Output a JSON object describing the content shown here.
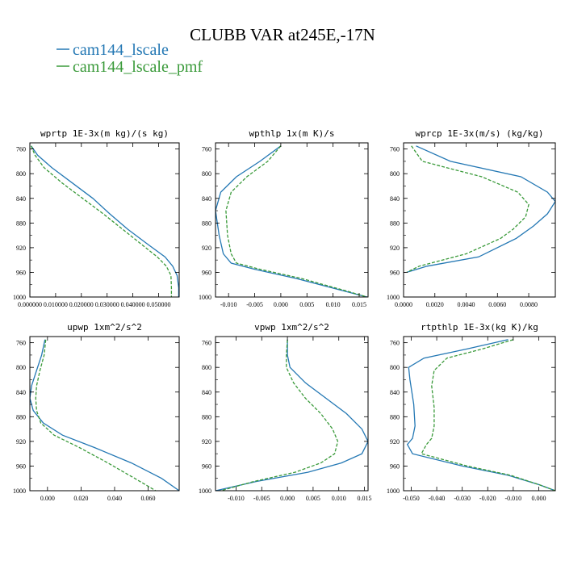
{
  "title": "CLUBB VAR at245E,-17N",
  "legend": [
    {
      "name": "cam144_lscale",
      "color": "#2478b4"
    },
    {
      "name": "cam144_lscale_pmf",
      "color": "#3a9a3a"
    }
  ],
  "chart_data": [
    {
      "type": "line",
      "title": "wprtp  1E-3x(m kg)/(s kg)",
      "xlim": [
        0.0,
        0.058
      ],
      "ylim": [
        1000,
        750
      ],
      "xticks": [
        0.0,
        0.01,
        0.02,
        0.03,
        0.04,
        0.05
      ],
      "xtick_labels": [
        "0.000000",
        "0.010000",
        "0.020000",
        "0.030000",
        "0.040000",
        "0.050000"
      ],
      "yticks": [
        760,
        800,
        840,
        880,
        920,
        960,
        1000
      ],
      "ytick_labels": [
        "760",
        "800",
        "840",
        "880",
        "920",
        "960",
        "1000"
      ],
      "series": [
        {
          "name": "cam144_lscale",
          "color": "#2478b4",
          "dash": "",
          "x": [
            0.0005,
            0.003,
            0.0085,
            0.0165,
            0.0245,
            0.031,
            0.038,
            0.046,
            0.0525,
            0.0555,
            0.0572,
            0.0578,
            0.0578
          ],
          "y": [
            755,
            770,
            790,
            815,
            840,
            865,
            890,
            915,
            935,
            950,
            965,
            985,
            1000
          ]
        },
        {
          "name": "cam144_lscale_pmf",
          "color": "#3a9a3a",
          "dash": "4,2",
          "x": [
            0.0005,
            0.002,
            0.0055,
            0.0125,
            0.0205,
            0.0285,
            0.036,
            0.0435,
            0.0495,
            0.053,
            0.0548,
            0.055,
            0.055
          ],
          "y": [
            755,
            770,
            790,
            815,
            840,
            865,
            890,
            915,
            935,
            950,
            965,
            985,
            1000
          ]
        }
      ]
    },
    {
      "type": "line",
      "title": "wpthlp  1x(m K)/s",
      "xlim": [
        -0.0125,
        0.0167
      ],
      "ylim": [
        1000,
        750
      ],
      "xticks": [
        -0.01,
        -0.005,
        0.0,
        0.005,
        0.01,
        0.015
      ],
      "xtick_labels": [
        "-0.010",
        "-0.005",
        "0.000",
        "0.005",
        "0.010",
        "0.015"
      ],
      "yticks": [
        760,
        800,
        840,
        880,
        920,
        960,
        1000
      ],
      "ytick_labels": [
        "760",
        "800",
        "840",
        "880",
        "920",
        "960",
        "1000"
      ],
      "series": [
        {
          "name": "cam144_lscale",
          "color": "#2478b4",
          "dash": "",
          "x": [
            0.0,
            -0.004,
            -0.0085,
            -0.0115,
            -0.0125,
            -0.0118,
            -0.011,
            -0.0095,
            -0.005,
            0.003,
            0.012,
            0.0165
          ],
          "y": [
            755,
            780,
            805,
            830,
            860,
            900,
            930,
            945,
            955,
            970,
            990,
            1000
          ]
        },
        {
          "name": "cam144_lscale_pmf",
          "color": "#3a9a3a",
          "dash": "4,2",
          "x": [
            0.0,
            -0.0025,
            -0.0065,
            -0.0095,
            -0.0105,
            -0.0102,
            -0.0095,
            -0.0085,
            -0.004,
            0.004,
            0.0125,
            0.0165
          ],
          "y": [
            755,
            780,
            805,
            830,
            860,
            900,
            930,
            945,
            955,
            970,
            990,
            1000
          ]
        }
      ]
    },
    {
      "type": "line",
      "title": "wprcp  1E-3x(m/s) (kg/kg)",
      "xlim": [
        0.0,
        0.0097
      ],
      "ylim": [
        1000,
        750
      ],
      "xticks": [
        0.0,
        0.002,
        0.004,
        0.006,
        0.008
      ],
      "xtick_labels": [
        "0.0000",
        "0.0020",
        "0.0040",
        "0.0060",
        "0.0080"
      ],
      "yticks": [
        760,
        800,
        840,
        880,
        920,
        960,
        1000
      ],
      "ytick_labels": [
        "760",
        "800",
        "840",
        "880",
        "920",
        "960",
        "1000"
      ],
      "series": [
        {
          "name": "cam144_lscale",
          "color": "#2478b4",
          "dash": "",
          "x": [
            0.0008,
            0.003,
            0.0075,
            0.0092,
            0.0097,
            0.0092,
            0.0083,
            0.0072,
            0.0048,
            0.0015,
            0.0002
          ],
          "y": [
            755,
            780,
            805,
            830,
            845,
            865,
            885,
            905,
            935,
            950,
            960
          ]
        },
        {
          "name": "cam144_lscale_pmf",
          "color": "#3a9a3a",
          "dash": "4,2",
          "x": [
            0.0005,
            0.0012,
            0.005,
            0.0073,
            0.008,
            0.0078,
            0.007,
            0.0062,
            0.004,
            0.001,
            0.0002
          ],
          "y": [
            755,
            780,
            805,
            830,
            850,
            870,
            890,
            905,
            930,
            950,
            960
          ]
        }
      ]
    },
    {
      "type": "line",
      "title": "upwp  1xm^2/s^2",
      "xlim": [
        -0.0105,
        0.0785
      ],
      "ylim": [
        1000,
        750
      ],
      "xticks": [
        0.0,
        0.02,
        0.04,
        0.06
      ],
      "xtick_labels": [
        "0.000",
        "0.020",
        "0.040",
        "0.060"
      ],
      "yticks": [
        760,
        800,
        840,
        880,
        920,
        960,
        1000
      ],
      "ytick_labels": [
        "760",
        "800",
        "840",
        "880",
        "920",
        "960",
        "1000"
      ],
      "series": [
        {
          "name": "cam144_lscale",
          "color": "#2478b4",
          "dash": "",
          "x": [
            -0.0015,
            -0.0035,
            -0.0065,
            -0.0095,
            -0.0105,
            -0.0085,
            -0.0025,
            0.009,
            0.028,
            0.05,
            0.068,
            0.0785
          ],
          "y": [
            755,
            780,
            805,
            830,
            850,
            870,
            890,
            910,
            930,
            955,
            980,
            1000
          ]
        },
        {
          "name": "cam144_lscale_pmf",
          "color": "#3a9a3a",
          "dash": "4,2",
          "x": [
            -0.001,
            -0.002,
            -0.0045,
            -0.0065,
            -0.007,
            -0.0065,
            -0.004,
            0.004,
            0.019,
            0.036,
            0.052,
            0.0645
          ],
          "y": [
            755,
            780,
            805,
            830,
            850,
            870,
            890,
            910,
            930,
            955,
            980,
            1000
          ]
        }
      ]
    },
    {
      "type": "line",
      "title": "vpwp  1xm^2/s^2",
      "xlim": [
        -0.014,
        0.0157
      ],
      "ylim": [
        1000,
        750
      ],
      "xticks": [
        -0.01,
        -0.005,
        0.0,
        0.005,
        0.01,
        0.015
      ],
      "xtick_labels": [
        "-0.010",
        "-0.005",
        "0.000",
        "0.005",
        "0.010",
        "0.015"
      ],
      "yticks": [
        760,
        800,
        840,
        880,
        920,
        960,
        1000
      ],
      "ytick_labels": [
        "760",
        "800",
        "840",
        "880",
        "920",
        "960",
        "1000"
      ],
      "series": [
        {
          "name": "cam144_lscale",
          "color": "#2478b4",
          "dash": "",
          "x": [
            0.0,
            0.0,
            0.0005,
            0.0035,
            0.0075,
            0.0115,
            0.0145,
            0.0157,
            0.0145,
            0.0105,
            0.004,
            -0.006,
            -0.014
          ],
          "y": [
            755,
            780,
            800,
            825,
            850,
            875,
            900,
            920,
            940,
            955,
            970,
            985,
            1000
          ]
        },
        {
          "name": "cam144_lscale_pmf",
          "color": "#3a9a3a",
          "dash": "4,2",
          "x": [
            0.0,
            -0.0002,
            -0.0002,
            0.0012,
            0.0035,
            0.0065,
            0.0088,
            0.0098,
            0.0092,
            0.0065,
            0.0015,
            -0.0065,
            -0.013
          ],
          "y": [
            755,
            780,
            800,
            825,
            850,
            875,
            900,
            920,
            940,
            955,
            970,
            985,
            1000
          ]
        }
      ]
    },
    {
      "type": "line",
      "title": "rtpthlp  1E-3x(kg K)/kg",
      "xlim": [
        -0.053,
        0.0065
      ],
      "ylim": [
        1000,
        750
      ],
      "xticks": [
        -0.05,
        -0.04,
        -0.03,
        -0.02,
        -0.01,
        0.0
      ],
      "xtick_labels": [
        "-0.050",
        "-0.040",
        "-0.030",
        "-0.020",
        "-0.010",
        "0.000"
      ],
      "yticks": [
        760,
        800,
        840,
        880,
        920,
        960,
        1000
      ],
      "ytick_labels": [
        "760",
        "800",
        "840",
        "880",
        "920",
        "960",
        "1000"
      ],
      "series": [
        {
          "name": "cam144_lscale",
          "color": "#2478b4",
          "dash": "",
          "x": [
            -0.012,
            -0.028,
            -0.045,
            -0.051,
            -0.0505,
            -0.049,
            -0.0485,
            -0.0495,
            -0.0515,
            -0.0495,
            -0.03,
            -0.012,
            0.0,
            0.0065
          ],
          "y": [
            755,
            770,
            785,
            800,
            820,
            860,
            895,
            915,
            925,
            940,
            960,
            975,
            990,
            1000
          ]
        },
        {
          "name": "cam144_lscale_pmf",
          "color": "#3a9a3a",
          "dash": "4,2",
          "x": [
            -0.01,
            -0.022,
            -0.036,
            -0.041,
            -0.042,
            -0.041,
            -0.041,
            -0.042,
            -0.044,
            -0.046,
            -0.028,
            -0.011,
            0.0,
            0.0065
          ],
          "y": [
            755,
            770,
            785,
            805,
            830,
            865,
            895,
            915,
            925,
            940,
            960,
            975,
            990,
            1000
          ]
        }
      ]
    }
  ]
}
